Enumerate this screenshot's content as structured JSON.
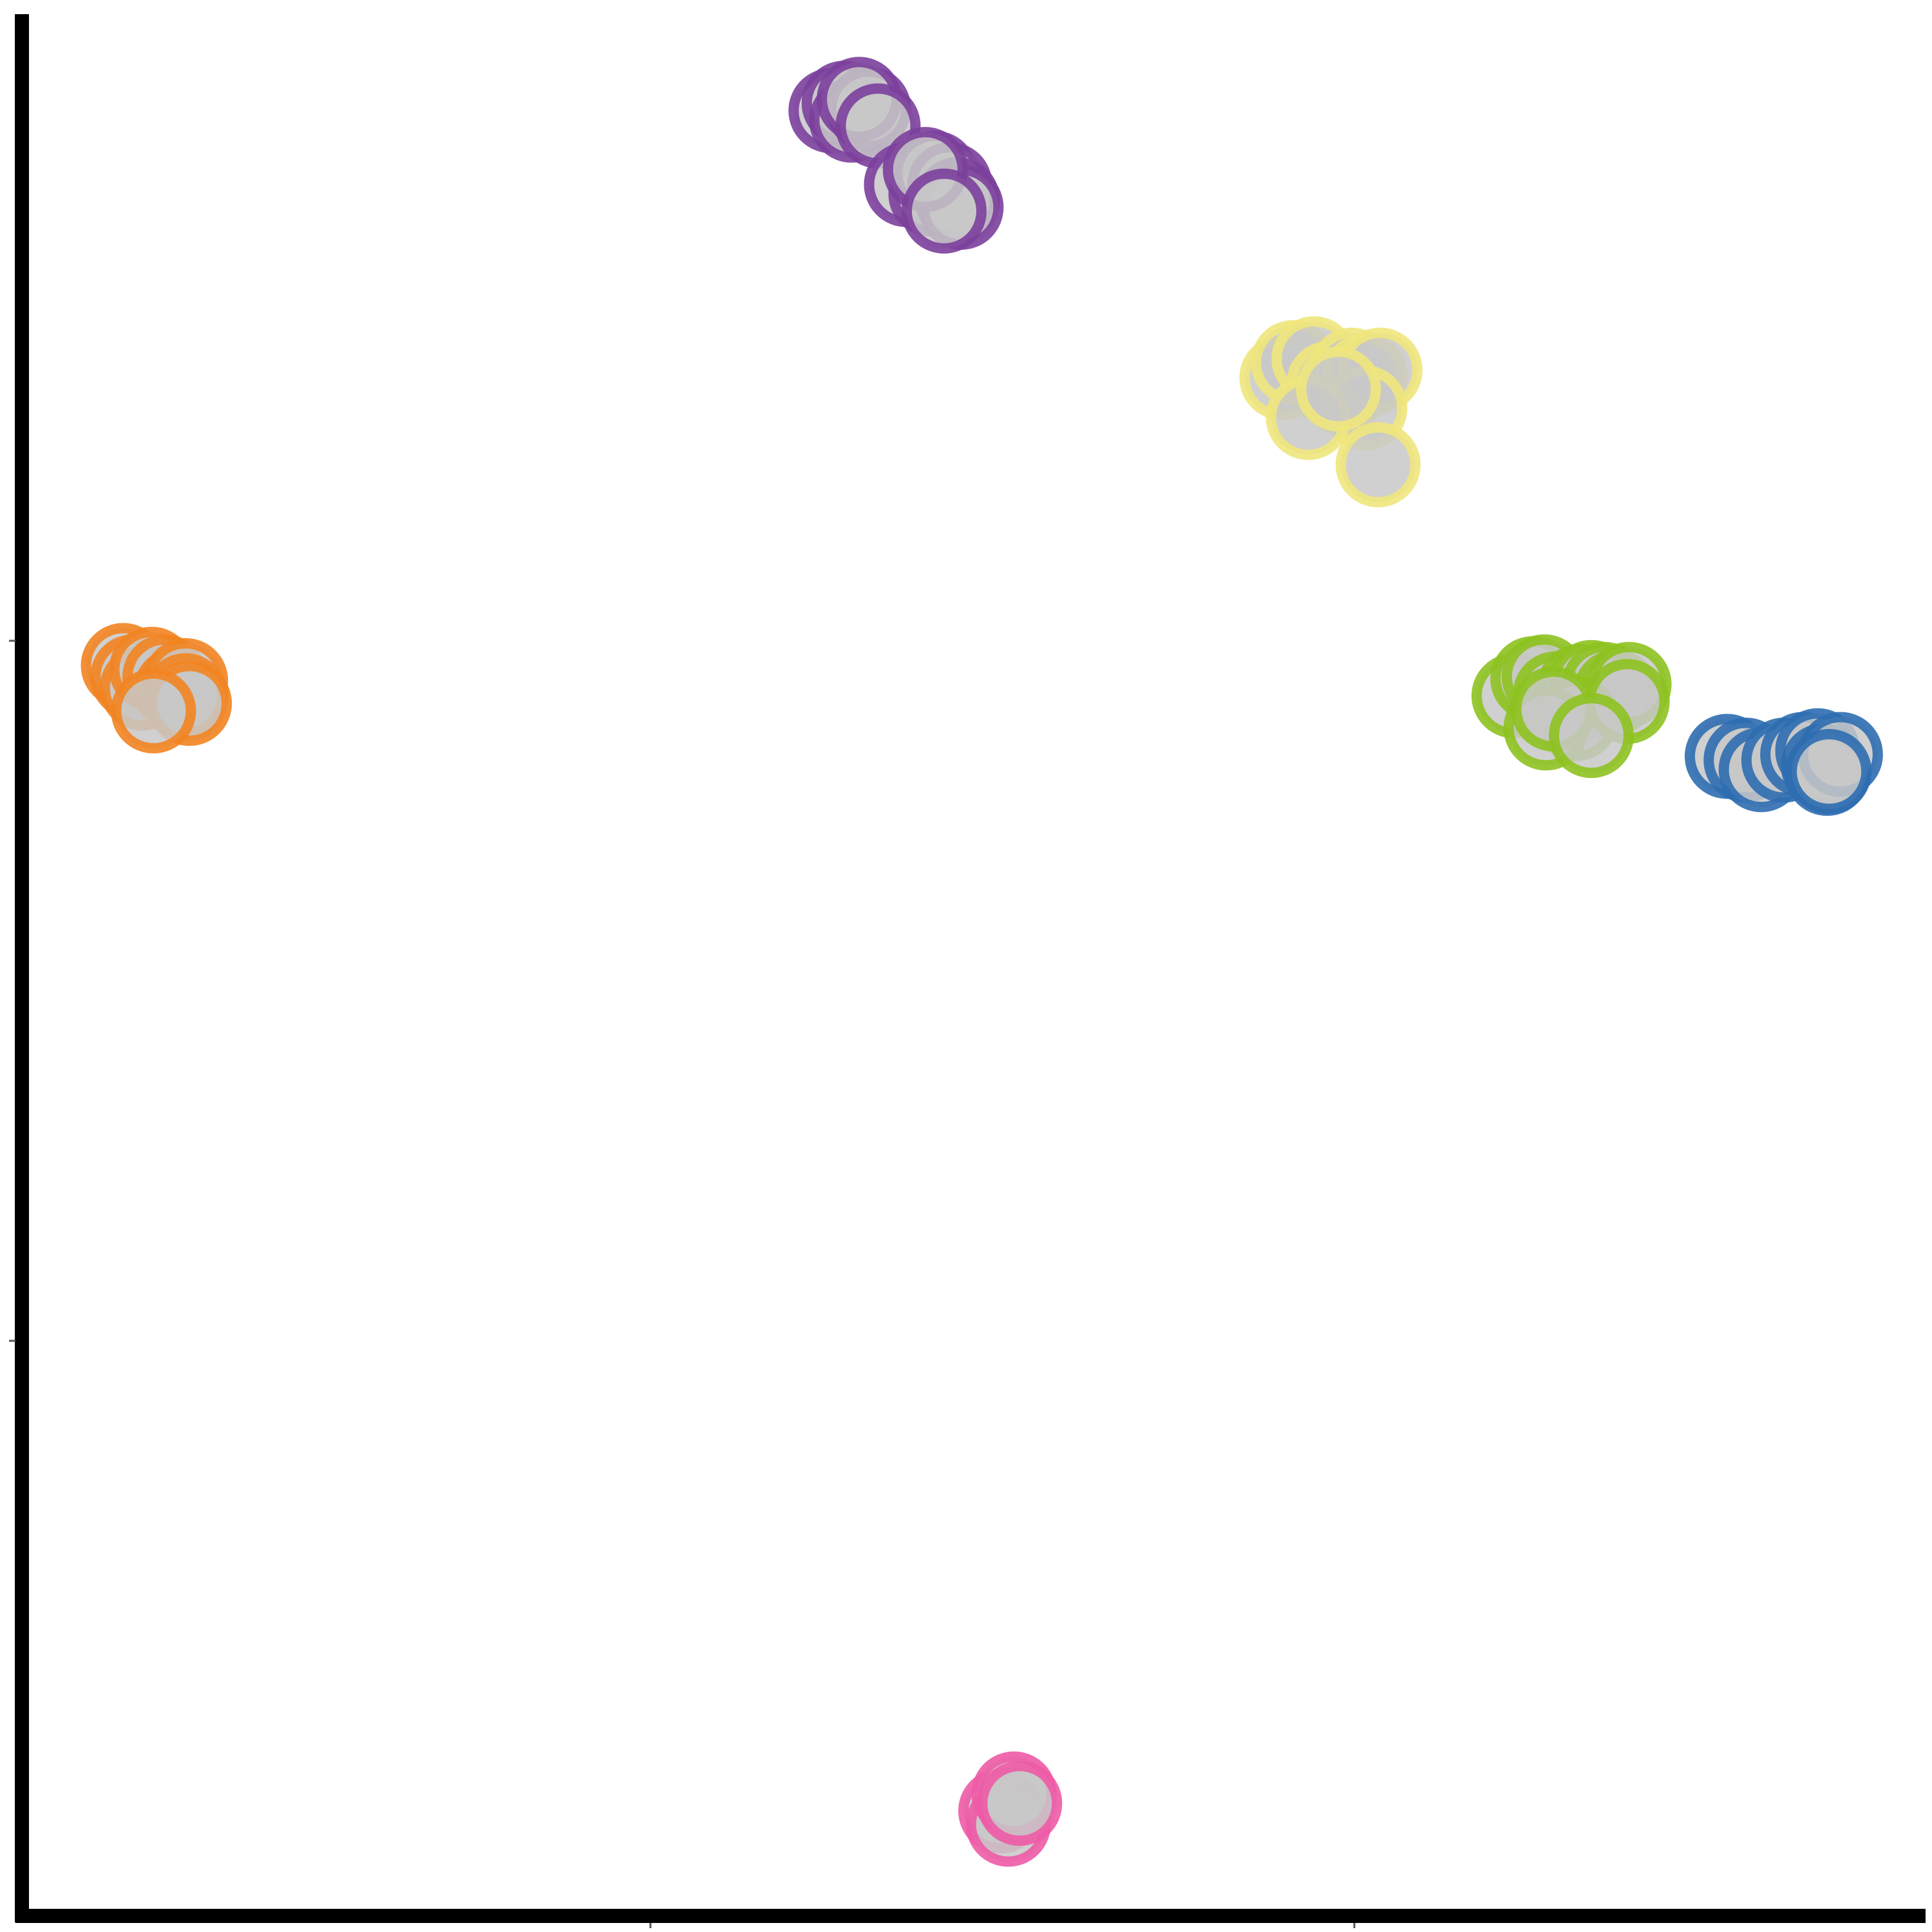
{
  "chart_data": {
    "type": "scatter",
    "title": "",
    "xlabel": "",
    "ylabel": "",
    "xlim": [
      0,
      1
    ],
    "ylim": [
      0,
      1
    ],
    "grid": false,
    "legend": "none",
    "point_fill": "#c8c8c8",
    "series": [
      {
        "color": "#7b3f9c",
        "x": [
          0.425,
          0.432,
          0.436,
          0.445,
          0.44,
          0.45,
          0.465,
          0.478,
          0.48,
          0.488,
          0.492,
          0.494,
          0.475,
          0.485
        ],
        "y": [
          0.949,
          0.953,
          0.944,
          0.95,
          0.955,
          0.941,
          0.91,
          0.905,
          0.916,
          0.91,
          0.902,
          0.898,
          0.918,
          0.896
        ]
      },
      {
        "color": "#f0e57c",
        "x": [
          0.664,
          0.67,
          0.681,
          0.689,
          0.696,
          0.701,
          0.708,
          0.716,
          0.708,
          0.678,
          0.694,
          0.715
        ],
        "y": [
          0.808,
          0.816,
          0.818,
          0.805,
          0.8,
          0.812,
          0.809,
          0.812,
          0.792,
          0.787,
          0.802,
          0.762
        ]
      },
      {
        "color": "#f28421",
        "x": [
          0.05,
          0.055,
          0.06,
          0.065,
          0.072,
          0.078,
          0.083,
          0.083,
          0.085,
          0.066
        ],
        "y": [
          0.656,
          0.65,
          0.644,
          0.654,
          0.65,
          0.643,
          0.648,
          0.64,
          0.636,
          0.632
        ]
      },
      {
        "color": "#8dc21f",
        "x": [
          0.787,
          0.797,
          0.803,
          0.809,
          0.817,
          0.822,
          0.828,
          0.835,
          0.841,
          0.848,
          0.82,
          0.804,
          0.808,
          0.847,
          0.828
        ],
        "y": [
          0.64,
          0.649,
          0.65,
          0.641,
          0.636,
          0.645,
          0.647,
          0.646,
          0.642,
          0.646,
          0.628,
          0.623,
          0.633,
          0.637,
          0.619
        ]
      },
      {
        "color": "#2d6db0",
        "x": [
          0.9,
          0.91,
          0.918,
          0.93,
          0.94,
          0.948,
          0.951,
          0.953,
          0.96,
          0.954
        ],
        "y": [
          0.608,
          0.606,
          0.601,
          0.606,
          0.609,
          0.611,
          0.603,
          0.599,
          0.609,
          0.6
        ]
      },
      {
        "color": "#ee5aa6",
        "x": [
          0.515,
          0.519,
          0.522,
          0.525
        ],
        "y": [
          0.051,
          0.044,
          0.06,
          0.055
        ]
      }
    ]
  }
}
